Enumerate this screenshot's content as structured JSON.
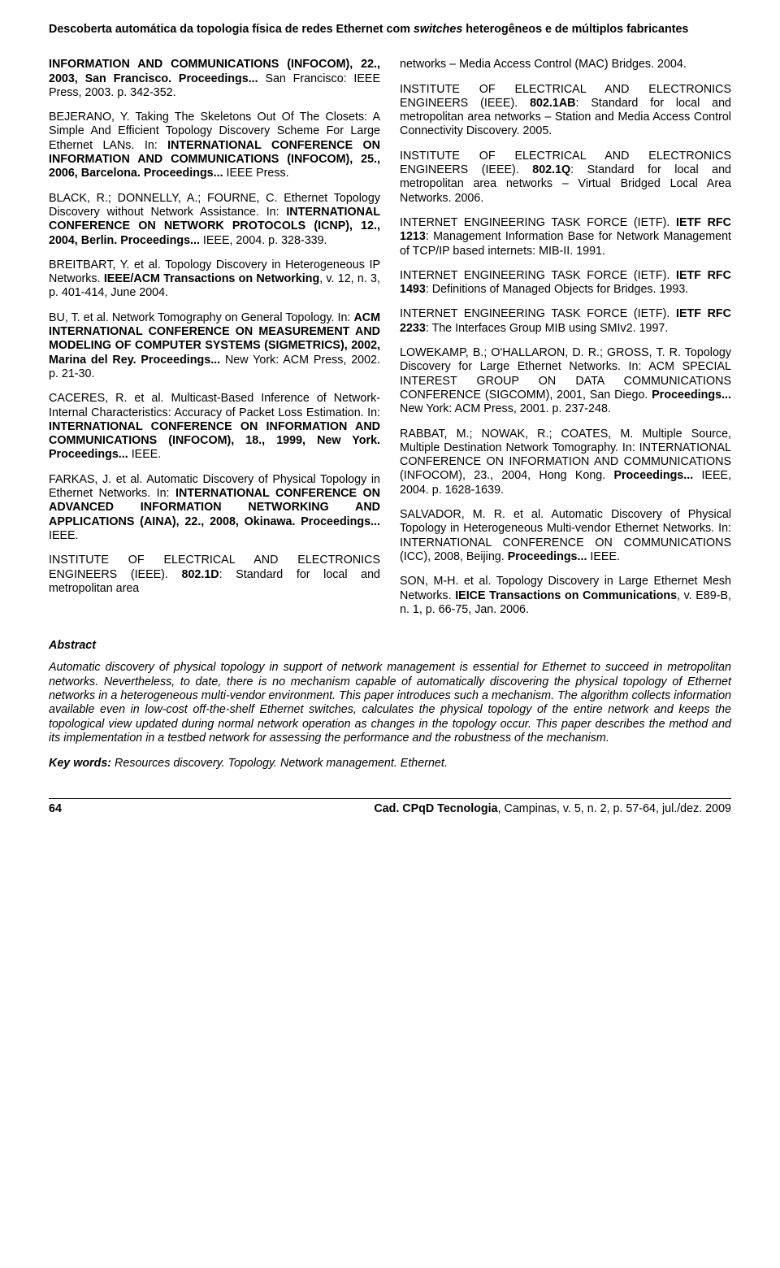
{
  "title_part1": "Descoberta automática da topologia física de redes Ethernet com ",
  "title_italic": "switches",
  "title_part2": " heterogêneos e de múltiplos fabricantes",
  "left": [
    "<span class=\"bold\">INFORMATION AND COMMUNICATIONS (INFOCOM), 22., 2003, San Francisco. Proceedings...</span> San Francisco: IEEE Press, 2003. p. 342-352.",
    "BEJERANO, Y. Taking The Skeletons Out Of The Closets: A Simple And Efficient Topology Discovery Scheme For Large Ethernet LANs. In: <span class=\"bold\">INTERNATIONAL CONFERENCE ON INFORMATION AND COMMUNICATIONS (INFOCOM), 25., 2006, Barcelona. Proceedings...</span> IEEE Press.",
    "BLACK, R.; DONNELLY, A.; FOURNE, C. Ethernet Topology Discovery without Network Assistance. In: <span class=\"bold\">INTERNATIONAL CONFERENCE ON NETWORK PROTOCOLS (ICNP), 12., 2004, Berlin. Proceedings...</span> IEEE, 2004. p. 328-339.",
    "BREITBART, Y. et al. Topology Discovery in Heterogeneous IP Networks. <span class=\"bold\">IEEE/ACM Transactions on Networking</span>, v. 12, n. 3, p. 401-414, June 2004.",
    "BU, T. et al. Network Tomography on General Topology. In: <span class=\"bold\">ACM INTERNATIONAL CONFERENCE ON MEASUREMENT AND MODELING OF COMPUTER SYSTEMS (SIGMETRICS), 2002, Marina del Rey. Proceedings...</span> New York: ACM Press, 2002. p. 21-30.",
    "CACERES, R. et al. Multicast-Based Inference of Network-Internal Characteristics: Accuracy of Packet Loss Estimation. In: <span class=\"bold\">INTERNATIONAL CONFERENCE ON INFORMATION AND COMMUNICATIONS (INFOCOM), 18., 1999, New York. Proceedings...</span> IEEE.",
    "FARKAS, J. et al. Automatic Discovery of Physical Topology in Ethernet Networks. In: <span class=\"bold\">INTERNATIONAL CONFERENCE ON ADVANCED INFORMATION NETWORKING AND APPLICATIONS (AINA), 22., 2008, Okinawa. Proceedings...</span> IEEE.",
    "INSTITUTE OF ELECTRICAL AND ELECTRONICS ENGINEERS (IEEE). <span class=\"bold\">802.1D</span>: Standard for local and metropolitan area"
  ],
  "right": [
    "networks – Media Access Control (MAC) Bridges. 2004.",
    "INSTITUTE OF ELECTRICAL AND ELECTRONICS ENGINEERS (IEEE). <span class=\"bold\">802.1AB</span>: Standard for local and metropolitan area networks – Station and Media Access Control Connectivity Discovery. 2005.",
    "INSTITUTE OF ELECTRICAL AND ELECTRONICS ENGINEERS (IEEE). <span class=\"bold\">802.1Q</span>: Standard for local and metropolitan area networks – Virtual Bridged Local Area Networks. 2006.",
    "INTERNET ENGINEERING TASK FORCE (IETF). <span class=\"bold\">IETF RFC 1213</span>: Management Information Base for Network Management of TCP/IP based internets: MIB-II. 1991.",
    "INTERNET ENGINEERING TASK FORCE (IETF). <span class=\"bold\">IETF RFC 1493</span>: Definitions of Managed Objects for Bridges. 1993.",
    "INTERNET ENGINEERING TASK FORCE (IETF). <span class=\"bold\">IETF RFC 2233</span>: The Interfaces Group MIB using SMIv2. 1997.",
    "LOWEKAMP, B.; O'HALLARON, D. R.; GROSS, T. R. Topology Discovery for Large Ethernet Networks. In: ACM SPECIAL INTEREST GROUP ON DATA COMMUNICATIONS CONFERENCE (SIGCOMM), 2001, San Diego. <span class=\"bold\">Proceedings...</span> New York: ACM Press, 2001. p. 237-248.",
    "RABBAT, M.; NOWAK, R.; COATES, M. Multiple Source, Multiple Destination Network Tomography. In: INTERNATIONAL CONFERENCE ON INFORMATION AND COMMUNICATIONS (INFOCOM), 23., 2004, Hong Kong. <span class=\"bold\">Proceedings...</span> IEEE, 2004. p. 1628-1639.",
    "SALVADOR, M. R. et al. Automatic Discovery of Physical Topology in Heterogeneous Multi-vendor Ethernet Networks. In: INTERNATIONAL CONFERENCE ON COMMUNICATIONS (ICC), 2008, Beijing. <span class=\"bold\">Proceedings...</span> IEEE.",
    "SON, M-H. et al. Topology Discovery in Large Ethernet Mesh Networks. <span class=\"bold\">IEICE Transactions on Communications</span>, v. E89-B, n. 1, p. 66-75, Jan. 2006."
  ],
  "abstract_label": "Abstract",
  "abstract_body": "Automatic discovery of physical topology in support of network management is essential for Ethernet to succeed in metropolitan networks. Nevertheless, to date, there is no mechanism capable of automatically discovering the physical topology of Ethernet networks in a heterogeneous multi-vendor environment. This paper introduces such a mechanism. The algorithm collects information available even in low-cost off-the-shelf Ethernet switches, calculates the physical topology of the entire network and keeps the topological view updated during normal network operation as changes in the topology occur. This paper describes the method and its implementation in a testbed network for assessing the performance and the robustness of the mechanism.",
  "keywords_label": "Key words:",
  "keywords_text": " Resources discovery. Topology. Network management. Ethernet.",
  "footer": {
    "page": "64",
    "journal_name": "Cad. CPqD Tecnologia",
    "journal_rest": ", Campinas, v. 5, n. 2, p. 57-64, jul./dez. 2009"
  }
}
